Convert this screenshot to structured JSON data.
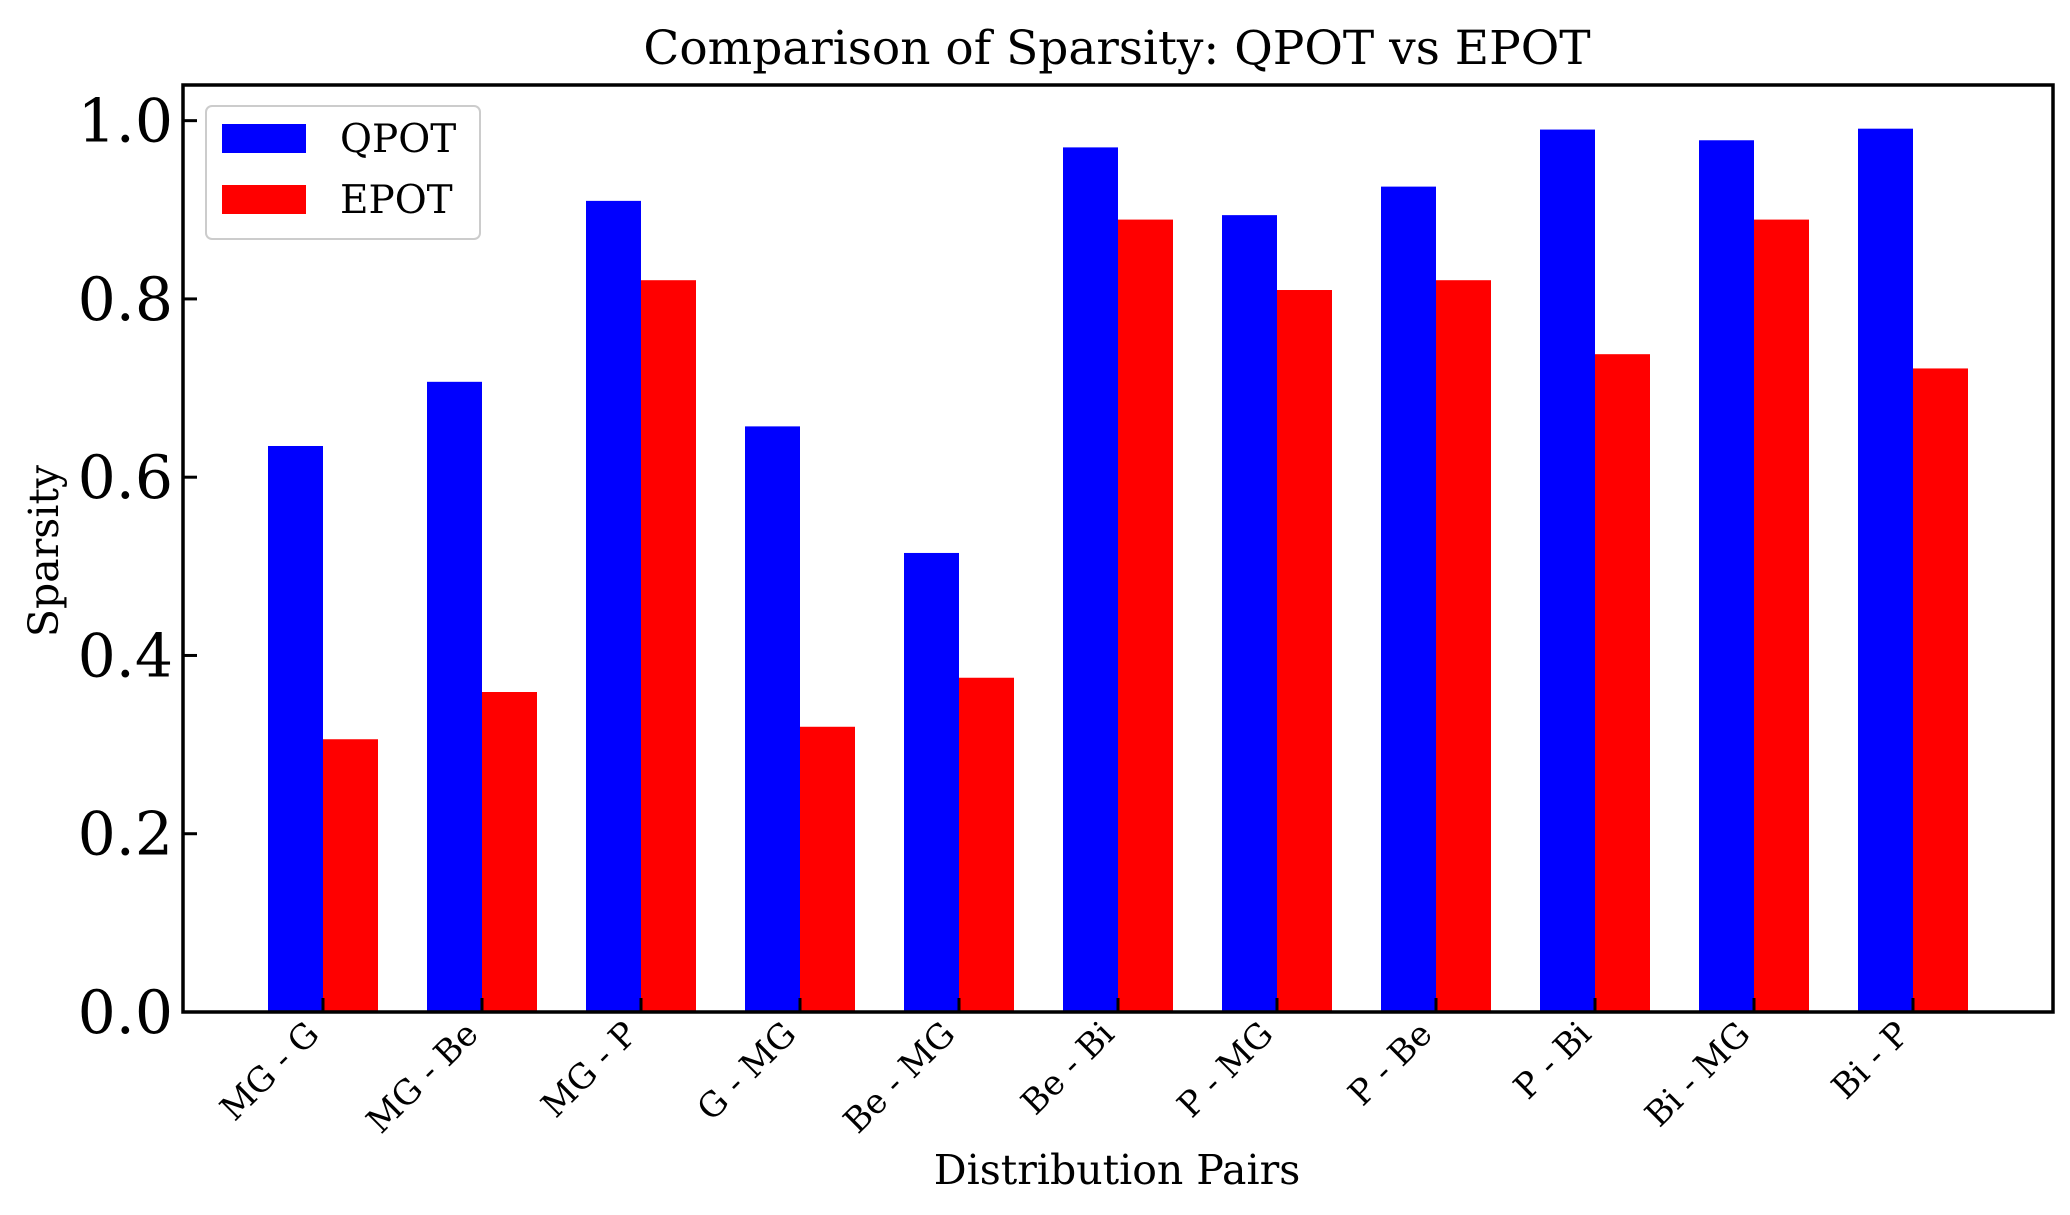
{
  "chart_data": {
    "type": "bar",
    "title": "Comparison of Sparsity: QPOT vs EPOT",
    "xlabel": "Distribution Pairs",
    "ylabel": "Sparsity",
    "categories": [
      "MG - G",
      "MG - Be",
      "MG - P",
      "G - MG",
      "Be - MG",
      "Be - Bi",
      "P - MG",
      "P - Be",
      "P - Bi",
      "Bi - MG",
      "Bi - P"
    ],
    "series": [
      {
        "name": "QPOT",
        "color": "#0000ff",
        "values": [
          0.635,
          0.707,
          0.91,
          0.657,
          0.515,
          0.97,
          0.894,
          0.926,
          0.99,
          0.978,
          0.991
        ]
      },
      {
        "name": "EPOT",
        "color": "#ff0000",
        "values": [
          0.306,
          0.359,
          0.821,
          0.32,
          0.375,
          0.889,
          0.81,
          0.821,
          0.738,
          0.889,
          0.722
        ]
      }
    ],
    "ylim": [
      0,
      1.04
    ],
    "yticks": [
      "0.0",
      "0.2",
      "0.4",
      "0.6",
      "0.8",
      "1.0"
    ],
    "legend_position": "top-left",
    "grid": false
  }
}
